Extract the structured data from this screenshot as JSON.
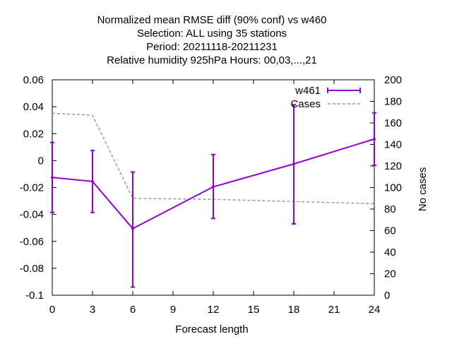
{
  "chart_data": {
    "type": "line",
    "title_lines": [
      "Normalized mean RMSE diff (90% conf) vs w460",
      "Selection: ALL using    35 stations",
      "Period: 20211118-20211231",
      "Relative humidity 925hPa   Hours:  00,03,...,21"
    ],
    "xlabel": "Forecast length",
    "ylabel": "",
    "y2label": "No cases",
    "xlim": [
      0,
      24
    ],
    "ylim": [
      -0.1,
      0.06
    ],
    "y2lim": [
      0,
      200
    ],
    "xticks": [
      0,
      3,
      6,
      9,
      12,
      15,
      18,
      21,
      24
    ],
    "yticks": [
      -0.1,
      -0.08,
      -0.06,
      -0.04,
      -0.02,
      0,
      0.02,
      0.04,
      0.06
    ],
    "ytick_labels": [
      "-0.1",
      "-0.08",
      "-0.06",
      "-0.04",
      "-0.02",
      "0",
      "0.02",
      "0.04",
      "0.06"
    ],
    "y2ticks": [
      0,
      20,
      40,
      60,
      80,
      100,
      120,
      140,
      160,
      180,
      200
    ],
    "grid": false,
    "legend_position": "top-right",
    "series": [
      {
        "name": "w461",
        "axis": "y1",
        "style": "errorbars",
        "color": "#9400d3",
        "x": [
          0,
          3,
          6,
          12,
          18,
          24
        ],
        "values": [
          -0.0125,
          -0.0155,
          -0.0505,
          -0.0195,
          -0.0025,
          0.016
        ],
        "err_low": [
          -0.0385,
          -0.0385,
          -0.094,
          -0.043,
          -0.047,
          -0.0035
        ],
        "err_high": [
          0.0135,
          0.0075,
          -0.0085,
          0.0045,
          0.0415,
          0.0355
        ]
      },
      {
        "name": "Cases",
        "axis": "y2",
        "style": "dashed",
        "color": "#999999",
        "x": [
          0,
          3,
          6,
          12,
          18,
          24
        ],
        "values": [
          169,
          167,
          90,
          89,
          87,
          85
        ]
      }
    ]
  }
}
